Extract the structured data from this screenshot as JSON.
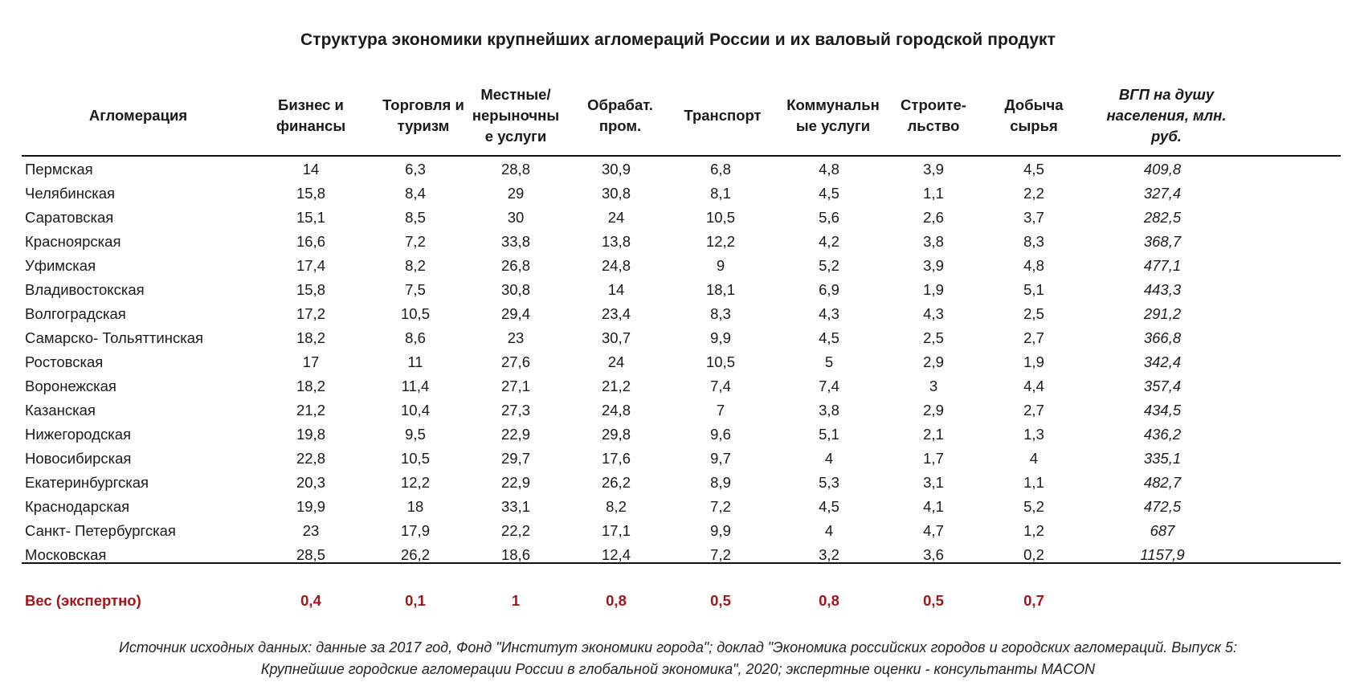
{
  "title": "Структура экономики крупнейших агломераций России и их валовый городской продукт",
  "columns": [
    {
      "key": "name",
      "label": "Агломерация"
    },
    {
      "key": "biz",
      "label": "Бизнес и\nфинансы"
    },
    {
      "key": "trade",
      "label": "Торговля и\nтуризм"
    },
    {
      "key": "local",
      "label": "Местные/\nнерыночны\nе услуги"
    },
    {
      "key": "manuf",
      "label": "Обрабат.\nпром."
    },
    {
      "key": "transport",
      "label": "Транспорт"
    },
    {
      "key": "utility",
      "label": "Коммунальн\nые услуги"
    },
    {
      "key": "constr",
      "label": "Строите-\nльство"
    },
    {
      "key": "mining",
      "label": "Добыча\nсырья"
    },
    {
      "key": "gdp",
      "label": "ВГП на душу\nнаселения, млн.\nруб."
    }
  ],
  "rows": [
    [
      "Пермская",
      "14",
      "6,3",
      "28,8",
      "30,9",
      "6,8",
      "4,8",
      "3,9",
      "4,5",
      "409,8"
    ],
    [
      "Челябинская",
      "15,8",
      "8,4",
      "29",
      "30,8",
      "8,1",
      "4,5",
      "1,1",
      "2,2",
      "327,4"
    ],
    [
      "Саратовская",
      "15,1",
      "8,5",
      "30",
      "24",
      "10,5",
      "5,6",
      "2,6",
      "3,7",
      "282,5"
    ],
    [
      "Красноярская",
      "16,6",
      "7,2",
      "33,8",
      "13,8",
      "12,2",
      "4,2",
      "3,8",
      "8,3",
      "368,7"
    ],
    [
      "Уфимская",
      "17,4",
      "8,2",
      "26,8",
      "24,8",
      "9",
      "5,2",
      "3,9",
      "4,8",
      "477,1"
    ],
    [
      "Владивостокская",
      "15,8",
      "7,5",
      "30,8",
      "14",
      "18,1",
      "6,9",
      "1,9",
      "5,1",
      "443,3"
    ],
    [
      "Волгоградская",
      "17,2",
      "10,5",
      "29,4",
      "23,4",
      "8,3",
      "4,3",
      "4,3",
      "2,5",
      "291,2"
    ],
    [
      "Самарско- Тольяттинская",
      "18,2",
      "8,6",
      "23",
      "30,7",
      "9,9",
      "4,5",
      "2,5",
      "2,7",
      "366,8"
    ],
    [
      "Ростовская",
      "17",
      "11",
      "27,6",
      "24",
      "10,5",
      "5",
      "2,9",
      "1,9",
      "342,4"
    ],
    [
      "Воронежская",
      "18,2",
      "11,4",
      "27,1",
      "21,2",
      "7,4",
      "7,4",
      "3",
      "4,4",
      "357,4"
    ],
    [
      "Казанская",
      "21,2",
      "10,4",
      "27,3",
      "24,8",
      "7",
      "3,8",
      "2,9",
      "2,7",
      "434,5"
    ],
    [
      "Нижегородская",
      "19,8",
      "9,5",
      "22,9",
      "29,8",
      "9,6",
      "5,1",
      "2,1",
      "1,3",
      "436,2"
    ],
    [
      "Новосибирская",
      "22,8",
      "10,5",
      "29,7",
      "17,6",
      "9,7",
      "4",
      "1,7",
      "4",
      "335,1"
    ],
    [
      "Екатеринбургская",
      "20,3",
      "12,2",
      "22,9",
      "26,2",
      "8,9",
      "5,3",
      "3,1",
      "1,1",
      "482,7"
    ],
    [
      "Краснодарская",
      "19,9",
      "18",
      "33,1",
      "8,2",
      "7,2",
      "4,5",
      "4,1",
      "5,2",
      "472,5"
    ],
    [
      "Санкт- Петербургская",
      "23",
      "17,9",
      "22,2",
      "17,1",
      "9,9",
      "4",
      "4,7",
      "1,2",
      "687"
    ],
    [
      "Московская",
      "28,5",
      "26,2",
      "18,6",
      "12,4",
      "7,2",
      "3,2",
      "3,6",
      "0,2",
      "1157,9"
    ]
  ],
  "weights": {
    "label": "Вес (экспертно)",
    "values": [
      "0,4",
      "0,1",
      "1",
      "0,8",
      "0,5",
      "0,8",
      "0,5",
      "0,7"
    ]
  },
  "source": "Источник исходных данных: данные за 2017 год, Фонд \"Институт экономики города\"; доклад \"Экономика российских городов и городских агломераций. Выпуск 5:\nКрупнейшие городские агломерации России в глобальной экономика\", 2020; экспертные оценки - консультанты MACON",
  "colors": {
    "text": "#1a1a1a",
    "weights": "#a3151b",
    "rule": "#111111"
  }
}
